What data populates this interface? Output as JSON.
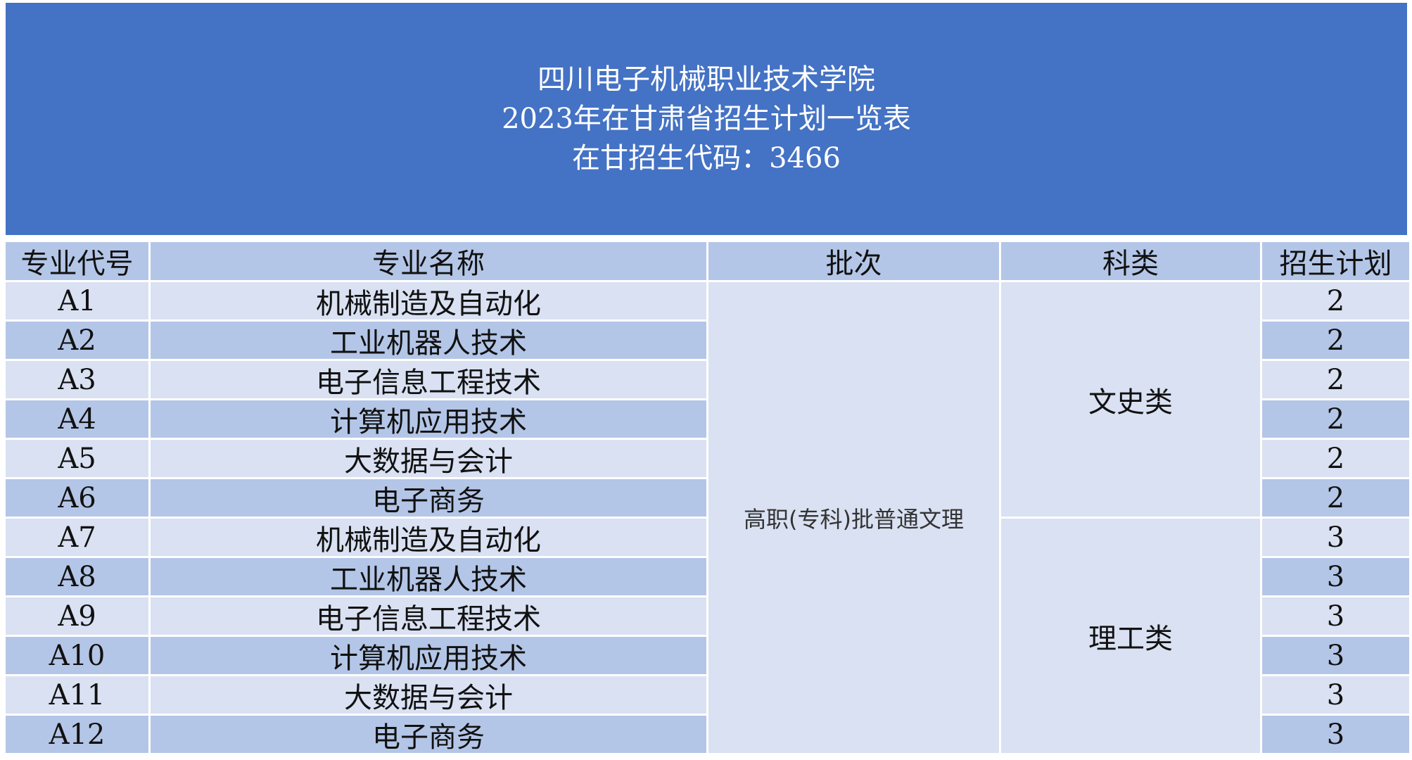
{
  "title": {
    "line1": "四川电子机械职业技术学院",
    "line2": "2023年在甘肃省招生计划一览表",
    "line3": "在甘招生代码：3466"
  },
  "table": {
    "headers": [
      "专业代号",
      "专业名称",
      "批次",
      "科类",
      "招生计划"
    ],
    "batch": "高职(专科)批普通文理",
    "categories": [
      "文史类",
      "理工类"
    ],
    "rows": [
      {
        "code": "A1",
        "name": "机械制造及自动化",
        "plan": "2"
      },
      {
        "code": "A2",
        "name": "工业机器人技术",
        "plan": "2"
      },
      {
        "code": "A3",
        "name": "电子信息工程技术",
        "plan": "2"
      },
      {
        "code": "A4",
        "name": "计算机应用技术",
        "plan": "2"
      },
      {
        "code": "A5",
        "name": "大数据与会计",
        "plan": "2"
      },
      {
        "code": "A6",
        "name": "电子商务",
        "plan": "2"
      },
      {
        "code": "A7",
        "name": "机械制造及自动化",
        "plan": "3"
      },
      {
        "code": "A8",
        "name": "工业机器人技术",
        "plan": "3"
      },
      {
        "code": "A9",
        "name": "电子信息工程技术",
        "plan": "3"
      },
      {
        "code": "A10",
        "name": "计算机应用技术",
        "plan": "3"
      },
      {
        "code": "A11",
        "name": "大数据与会计",
        "plan": "3"
      },
      {
        "code": "A12",
        "name": "电子商务",
        "plan": "3"
      }
    ]
  },
  "colors": {
    "banner": "#4472c4",
    "dark_row": "#b4c6e7",
    "light_row": "#d9e1f2"
  }
}
